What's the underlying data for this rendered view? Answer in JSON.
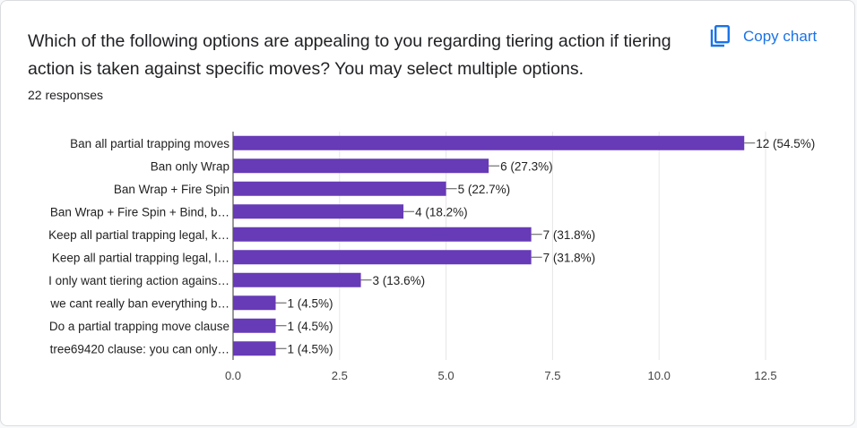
{
  "question": {
    "title": "Which of the following options are appealing to you regarding tiering action if tiering action is taken against specific moves? You may select multiple options.",
    "responses": "22 responses"
  },
  "toolbar": {
    "copy_label": "Copy chart",
    "copy_icon": "copy-icon"
  },
  "colors": {
    "bar": "#673ab7",
    "accent": "#1a73e8"
  },
  "chart_data": {
    "type": "bar",
    "orientation": "horizontal",
    "categories": [
      "Ban all partial trapping moves",
      "Ban only Wrap",
      "Ban Wrap + Fire Spin",
      "Ban Wrap + Fire Spin + Bind, b…",
      "Keep all partial trapping legal, k…",
      "Keep all partial trapping legal, l…",
      "I only want tiering action agains…",
      "we cant really ban everything b…",
      "Do a partial trapping move clause",
      "tree69420 clause: you can only…"
    ],
    "values": [
      12,
      6,
      5,
      4,
      7,
      7,
      3,
      1,
      1,
      1
    ],
    "data_labels": [
      "12 (54.5%)",
      "6 (27.3%)",
      "5 (22.7%)",
      "4 (18.2%)",
      "7 (31.8%)",
      "7 (31.8%)",
      "3 (13.6%)",
      "1 (4.5%)",
      "1 (4.5%)",
      "1 (4.5%)"
    ],
    "x_ticks": [
      "0.0",
      "2.5",
      "5.0",
      "7.5",
      "10.0",
      "12.5"
    ],
    "xlim": [
      0,
      12.5
    ],
    "grid": true,
    "legend": "none"
  }
}
